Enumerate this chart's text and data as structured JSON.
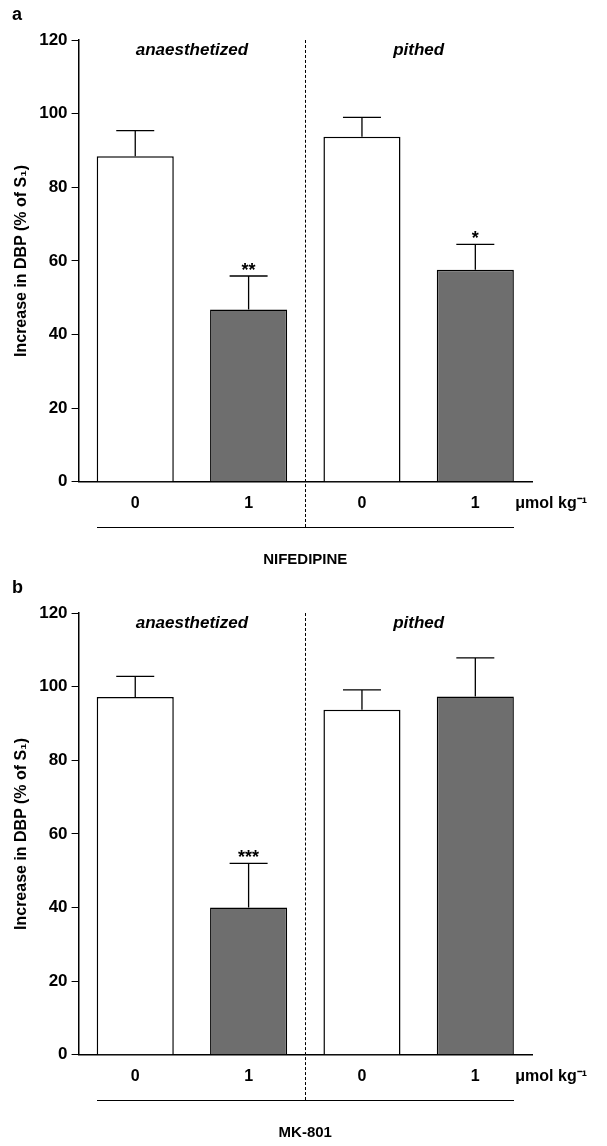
{
  "chart_data": [
    {
      "type": "bar",
      "title": "a",
      "xlabel": "NIFEDIPINE",
      "ylabel": "Increase in DBP (% of S₁)",
      "categories": [
        "0",
        "1",
        "0",
        "1"
      ],
      "values": [
        88.4,
        46.8,
        93.7,
        57.6
      ],
      "colors": [
        "#ffffff",
        "#6e6e6e",
        "#ffffff",
        "#6e6e6e"
      ],
      "errors": [
        [
          88.4,
          95.4
        ],
        [
          46.8,
          55.9
        ],
        [
          93.7,
          99.0
        ],
        [
          57.6,
          64.5
        ]
      ],
      "ylim": [
        0,
        120
      ],
      "yticks": [
        0,
        20,
        40,
        60,
        80,
        100,
        120
      ],
      "grid": false,
      "legend": false,
      "annotations": [
        "anaesthetized",
        "pithed",
        "μmol kg⁻¹",
        {
          "text": "**",
          "y": 55.9
        },
        {
          "text": "*",
          "y": 64.5
        }
      ]
    },
    {
      "type": "bar",
      "title": "b",
      "xlabel": "MK-801",
      "ylabel": "Increase in DBP (% of S₁)",
      "categories": [
        "0",
        "1",
        "0",
        "1"
      ],
      "values": [
        97.2,
        40.0,
        93.7,
        97.3
      ],
      "colors": [
        "#ffffff",
        "#6e6e6e",
        "#ffffff",
        "#6e6e6e"
      ],
      "errors": [
        [
          97.2,
          102.8
        ],
        [
          40.0,
          52.0
        ],
        [
          93.7,
          99.1
        ],
        [
          97.3,
          107.8
        ]
      ],
      "ylim": [
        0,
        120
      ],
      "yticks": [
        0,
        20,
        40,
        60,
        80,
        100,
        120
      ],
      "grid": false,
      "legend": false,
      "annotations": [
        "anaesthetized",
        "pithed",
        "μmol kg⁻¹",
        {
          "text": "***",
          "y": 52.0
        }
      ]
    }
  ]
}
